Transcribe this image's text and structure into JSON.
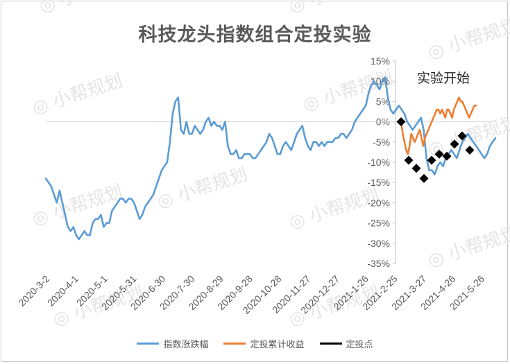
{
  "chart_data": {
    "type": "line",
    "title": "科技龙头指数组合定投实验",
    "annotation": "实验开始",
    "watermark": "小帮规划",
    "ylim": [
      -35,
      15
    ],
    "y_ticks": [
      "15%",
      "10%",
      "5%",
      "0%",
      "-5%",
      "-10%",
      "-15%",
      "-20%",
      "-25%",
      "-30%",
      "-35%"
    ],
    "x_ticks": [
      "2020-3-2",
      "2020-4-1",
      "2020-5-1",
      "2020-5-31",
      "2020-6-30",
      "2020-7-30",
      "2020-8-29",
      "2020-9-28",
      "2020-10-28",
      "2020-11-27",
      "2020-12-27",
      "2021-1-26",
      "2021-2-25",
      "2021-3-27",
      "2021-4-26",
      "2021-5-26"
    ],
    "grid": false,
    "legend_position": "bottom",
    "colors": {
      "index": "#5b9bd5",
      "return": "#ed7d31",
      "points": "#000000"
    },
    "series": [
      {
        "name": "指数涨跌幅",
        "values": [
          -14,
          -15,
          -16,
          -18,
          -20,
          -17,
          -20,
          -23,
          -26,
          -27,
          -26,
          -28,
          -29,
          -28,
          -27,
          -28,
          -28,
          -25,
          -24,
          -24,
          -23,
          -26,
          -25,
          -25,
          -22,
          -21,
          -20,
          -19,
          -19,
          -20,
          -19,
          -19,
          -20,
          -22,
          -24,
          -23,
          -21,
          -20,
          -19,
          -18,
          -16,
          -14,
          -12,
          -11,
          -10,
          -5,
          2,
          5,
          6,
          -2,
          -3,
          0,
          -3,
          -3,
          -1,
          -2,
          -3,
          -2,
          0,
          1,
          -1,
          0,
          -1,
          -1,
          -2,
          0,
          -6,
          -8,
          -8,
          -7,
          -9,
          -9,
          -8,
          -8,
          -8,
          -9,
          -9,
          -8,
          -7,
          -6,
          -5,
          -3,
          -4,
          -6,
          -8,
          -8,
          -6,
          -5,
          -6,
          -7,
          -5,
          -3,
          -2,
          -1,
          -4,
          -6,
          -7,
          -5,
          -5,
          -6,
          -5,
          -6,
          -5,
          -5,
          -5,
          -4,
          -4,
          -3,
          -3,
          -4,
          -3,
          -2,
          0,
          1,
          2,
          3,
          4,
          7,
          9,
          10,
          9,
          8,
          10,
          11,
          6,
          3,
          2,
          3,
          4,
          3,
          2,
          0,
          -1,
          -2,
          -1,
          0,
          1,
          -2,
          -9,
          -12,
          -12,
          -13,
          -11,
          -10,
          -11,
          -9,
          -8,
          -7,
          -8,
          -9,
          -7,
          -5,
          -4,
          -3,
          -4,
          -5,
          -6,
          -7,
          -8,
          -9,
          -8,
          -6,
          -5,
          -4
        ]
      },
      {
        "name": "定投累计收益",
        "values": [
          0,
          -3,
          -5,
          -7,
          -8,
          -6,
          -3,
          -4,
          -5,
          -4,
          -3,
          -2,
          -4,
          -6,
          -4,
          -3,
          -2,
          -1,
          0,
          1,
          2,
          3,
          3,
          2,
          3,
          2,
          1,
          3,
          3,
          2,
          1,
          3,
          4,
          5,
          6,
          5,
          5,
          4,
          3,
          2,
          1,
          2,
          3,
          4,
          4
        ]
      },
      {
        "name": "定投点",
        "values": [
          0,
          -9.5,
          -11.5,
          -14,
          -9.5,
          -8,
          -8.5,
          -5.5,
          -3.5,
          -7
        ]
      }
    ]
  },
  "legend": {
    "index_label": "指数涨跌幅",
    "return_label": "定投累计收益",
    "points_label": "定投点"
  }
}
